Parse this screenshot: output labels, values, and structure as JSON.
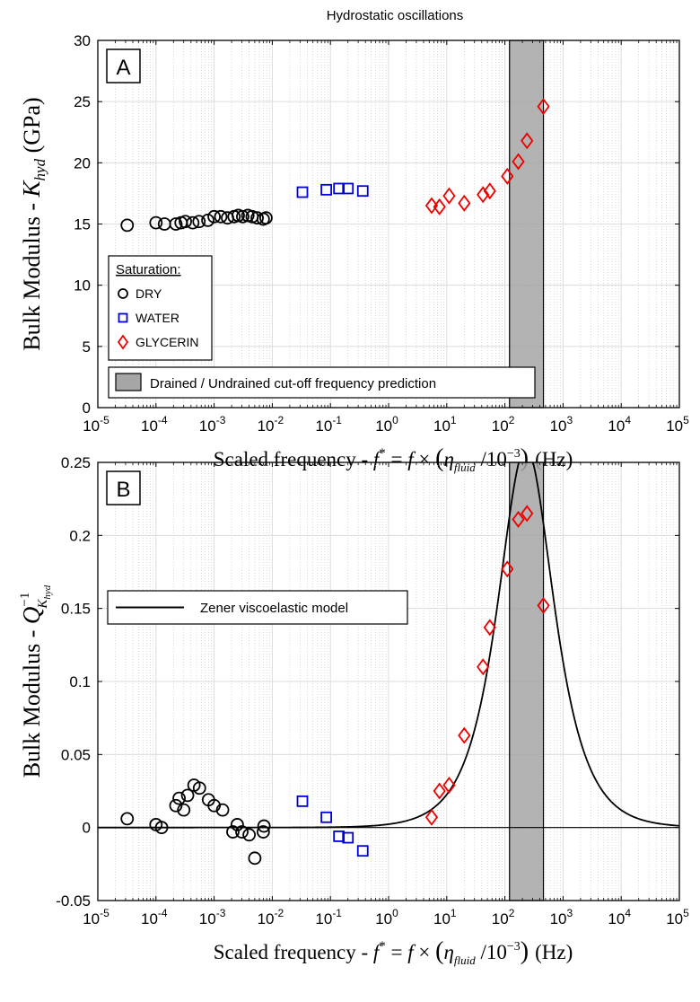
{
  "figure_title": "Hydrostatic oscillations",
  "chart_data": [
    {
      "panel": "A",
      "type": "scatter",
      "xscale": "log",
      "xlim": [
        1e-05,
        100000.0
      ],
      "ylim": [
        0,
        30
      ],
      "yticks": [
        0,
        5,
        10,
        15,
        20,
        25,
        30
      ],
      "xtick_exponents": [
        "-5",
        "-4",
        "-3",
        "-2",
        "-1",
        "0",
        "1",
        "2",
        "3",
        "4",
        "5"
      ],
      "xtick_base": "10",
      "ylabel_main": "Bulk Modulus - ",
      "ylabel_symbol": "K",
      "ylabel_sub": "hyd",
      "ylabel_unit": "(GPa)",
      "xlabel_main": "Scaled frequency - ",
      "xlabel_f": "f",
      "xlabel_sup": "*",
      "xlabel_eq": " = ",
      "xlabel_f2": "f",
      "xlabel_times": " × ",
      "xlabel_eta": "η",
      "xlabel_eta_sub": "fluid",
      "xlabel_slash": " /",
      "xlabel_ten": "10",
      "xlabel_ten_exp": "−3",
      "xlabel_unit": "(Hz)",
      "grid": true,
      "legend": {
        "title": "Saturation:",
        "placement": "middle-left",
        "entries": [
          "DRY",
          "WATER",
          "GLYCERIN"
        ]
      },
      "band_legend": "Drained / Undrained cut-off frequency prediction",
      "band": [
        120,
        460
      ],
      "series": [
        {
          "name": "DRY",
          "marker": "circle",
          "color": "#000000",
          "x": [
            3.2e-05,
            0.0001,
            0.00014,
            0.00022,
            0.00027,
            0.00032,
            0.00043,
            0.00055,
            0.00078,
            0.001,
            0.0013,
            0.0017,
            0.0022,
            0.0026,
            0.0031,
            0.0038,
            0.0045,
            0.0055,
            0.007,
            0.0078
          ],
          "y": [
            14.9,
            15.1,
            15.0,
            15.0,
            15.1,
            15.2,
            15.1,
            15.2,
            15.3,
            15.6,
            15.6,
            15.5,
            15.6,
            15.7,
            15.6,
            15.7,
            15.6,
            15.5,
            15.4,
            15.5
          ]
        },
        {
          "name": "WATER",
          "marker": "square",
          "color": "#0000dd",
          "x": [
            0.033,
            0.085,
            0.14,
            0.2,
            0.36
          ],
          "y": [
            17.6,
            17.8,
            17.9,
            17.9,
            17.7
          ]
        },
        {
          "name": "GLYCERIN",
          "marker": "diamond",
          "color": "#ee0000",
          "x": [
            5.5,
            7.5,
            11,
            20,
            42,
            55,
            110,
            170,
            240,
            460
          ],
          "y": [
            16.5,
            16.4,
            17.3,
            16.7,
            17.4,
            17.7,
            18.9,
            20.1,
            21.8,
            24.6
          ]
        }
      ]
    },
    {
      "panel": "B",
      "type": "scatter",
      "xscale": "log",
      "xlim": [
        1e-05,
        100000.0
      ],
      "ylim": [
        -0.05,
        0.25
      ],
      "yticks": [
        "-0.05",
        "0",
        "0.05",
        "0.1",
        "0.15",
        "0.2",
        "0.25"
      ],
      "xtick_exponents": [
        "-5",
        "-4",
        "-3",
        "-2",
        "-1",
        "0",
        "1",
        "2",
        "3",
        "4",
        "5"
      ],
      "xtick_base": "10",
      "ylabel_main": "Bulk Modulus - ",
      "ylabel_symbol": "Q",
      "ylabel_sup": "−1",
      "ylabel_sub": "K",
      "ylabel_subsub": "hyd",
      "xlabel_main": "Scaled frequency - ",
      "xlabel_f": "f",
      "xlabel_sup": "*",
      "xlabel_eq": " = ",
      "xlabel_f2": "f",
      "xlabel_times": " × ",
      "xlabel_eta": "η",
      "xlabel_eta_sub": "fluid",
      "xlabel_slash": " /",
      "xlabel_ten": "10",
      "xlabel_ten_exp": "−3",
      "xlabel_unit": "(Hz)",
      "grid": true,
      "legend": {
        "placement": "upper-left",
        "entries": [
          "Zener viscoelastic model"
        ]
      },
      "band": [
        120,
        460
      ],
      "model": {
        "name": "Zener viscoelastic model",
        "peak_frequency": 230,
        "peak_value": 0.26
      },
      "series": [
        {
          "name": "DRY",
          "marker": "circle",
          "color": "#000000",
          "x": [
            3.2e-05,
            0.0001,
            0.000125,
            0.00022,
            0.00025,
            0.0003,
            0.00035,
            0.00045,
            0.00056,
            0.0008,
            0.001,
            0.0014,
            0.0021,
            0.0025,
            0.003,
            0.004,
            0.005,
            0.007,
            0.0072
          ],
          "y": [
            0.006,
            0.002,
            0.0,
            0.015,
            0.02,
            0.012,
            0.022,
            0.029,
            0.027,
            0.019,
            0.015,
            0.012,
            -0.003,
            0.002,
            -0.003,
            -0.005,
            -0.021,
            -0.003,
            0.001
          ]
        },
        {
          "name": "WATER",
          "marker": "square",
          "color": "#0000dd",
          "x": [
            0.033,
            0.085,
            0.14,
            0.2,
            0.36
          ],
          "y": [
            0.018,
            0.007,
            -0.006,
            -0.007,
            -0.016
          ]
        },
        {
          "name": "GLYCERIN",
          "marker": "diamond",
          "color": "#ee0000",
          "x": [
            5.5,
            7.5,
            11,
            20,
            42,
            55,
            110,
            170,
            240,
            460
          ],
          "y": [
            0.007,
            0.025,
            0.029,
            0.063,
            0.11,
            0.137,
            0.177,
            0.211,
            0.215,
            0.152
          ]
        }
      ]
    }
  ]
}
